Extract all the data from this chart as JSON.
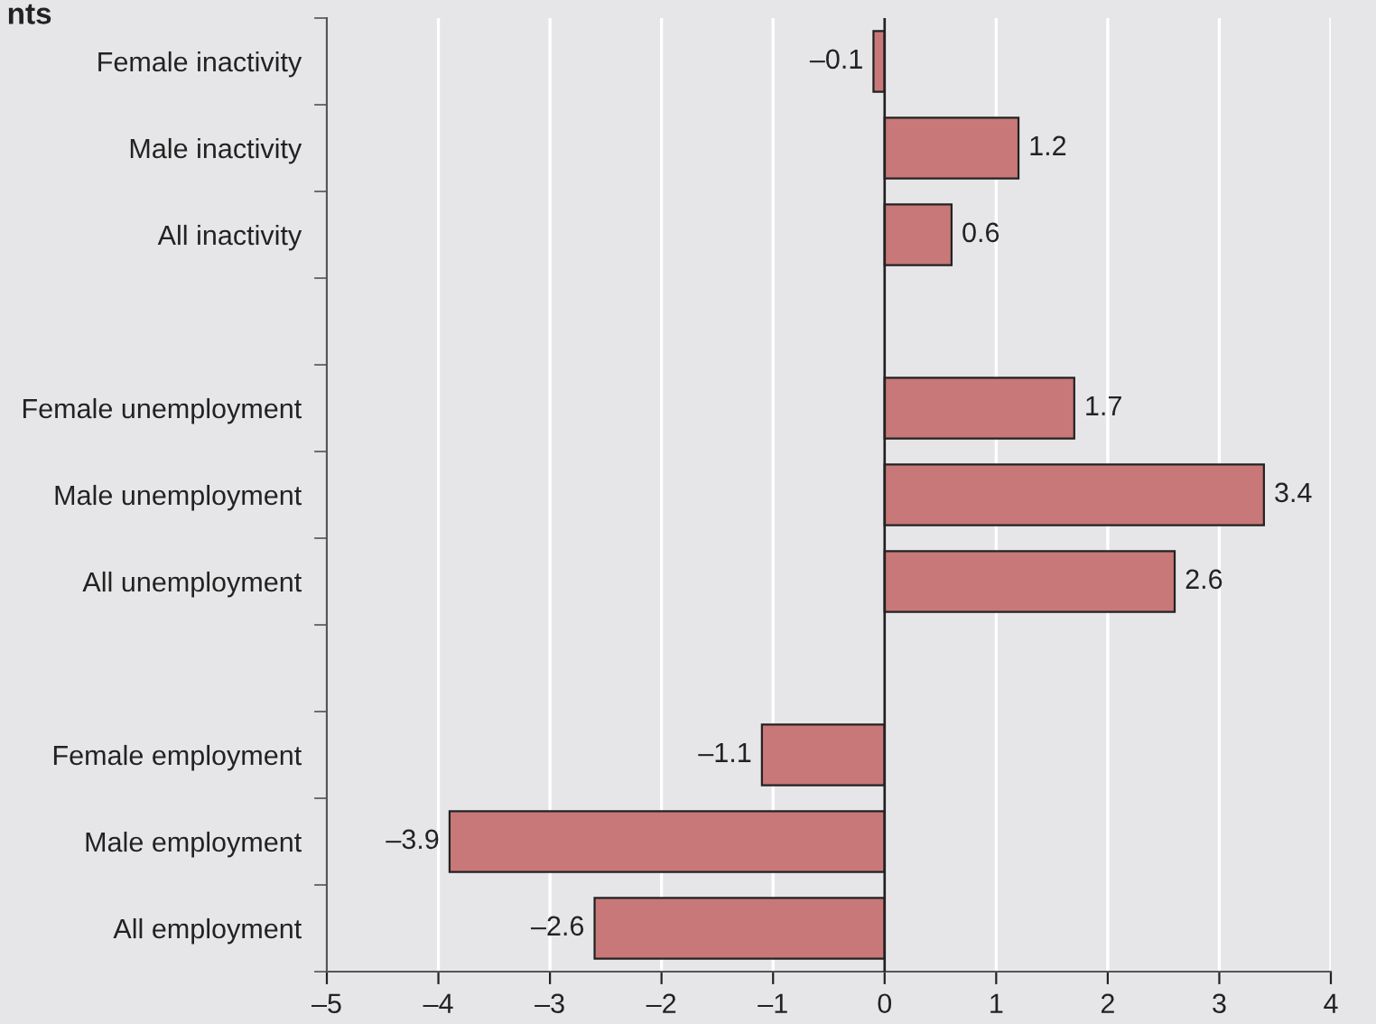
{
  "chart_data": {
    "type": "bar",
    "orientation": "horizontal",
    "title": "nts",
    "categories": [
      "Female inactivity",
      "Male inactivity",
      "All inactivity",
      null,
      "Female unemployment",
      "Male unemployment",
      "All unemployment",
      null,
      "Female employment",
      "Male employment",
      "All employment"
    ],
    "values": [
      -0.1,
      1.2,
      0.6,
      null,
      1.7,
      3.4,
      2.6,
      null,
      -1.1,
      -3.9,
      -2.6
    ],
    "value_labels": [
      "–0.1",
      "1.2",
      "0.6",
      null,
      "1.7",
      "3.4",
      "2.6",
      null,
      "–1.1",
      "–3.9",
      "–2.6"
    ],
    "color": "#c87878",
    "xlim": [
      -5,
      4
    ],
    "xticks": [
      {
        "value": -5,
        "label": "–5"
      },
      {
        "value": -4,
        "label": "–4"
      },
      {
        "value": -3,
        "label": "–3"
      },
      {
        "value": -2,
        "label": "–2"
      },
      {
        "value": -1,
        "label": "–1"
      },
      0,
      1,
      2,
      3,
      4
    ],
    "ref_lines": [
      {
        "axis": "x",
        "value": 0
      }
    ],
    "grid": "x"
  }
}
